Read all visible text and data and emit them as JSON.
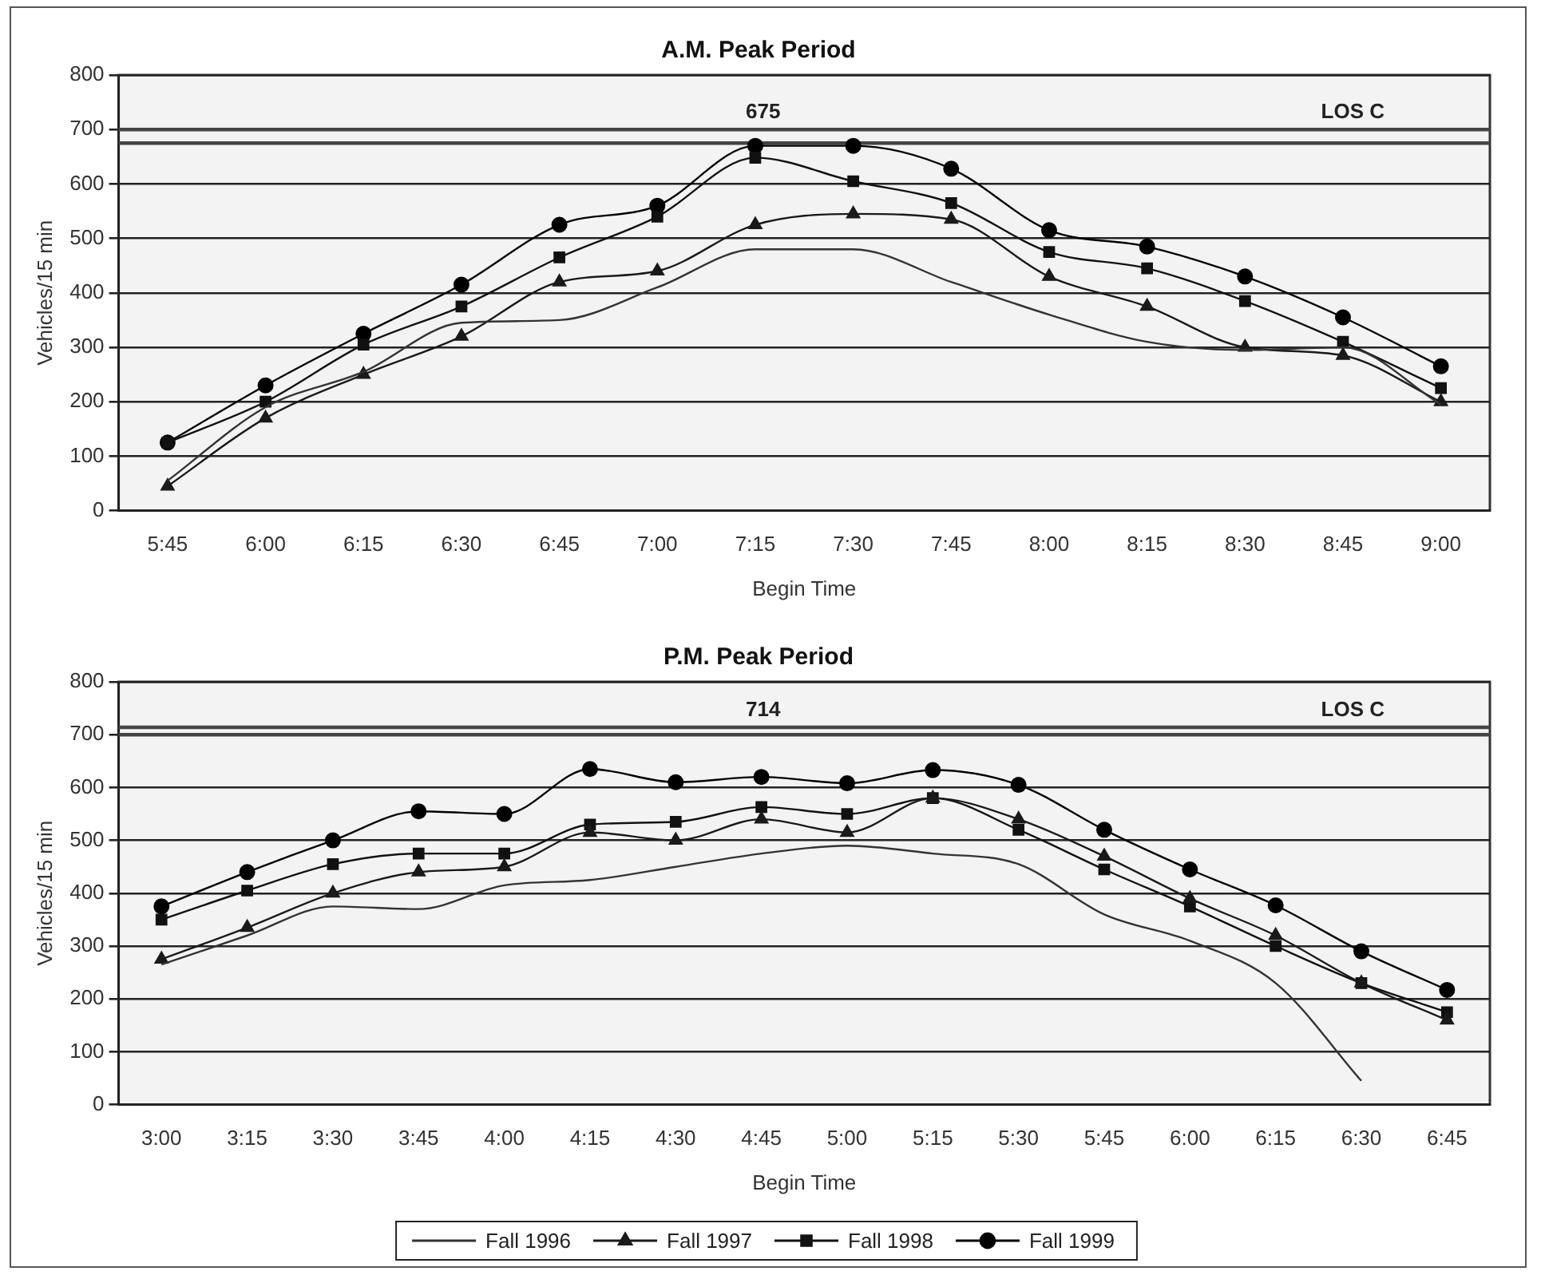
{
  "chart_data": [
    {
      "type": "line",
      "title": "A.M. Peak Period",
      "xlabel": "Begin Time",
      "ylabel": "Vehicles/15 min",
      "categories": [
        "5:45",
        "6:00",
        "6:15",
        "6:30",
        "6:45",
        "7:00",
        "7:15",
        "7:30",
        "7:45",
        "8:00",
        "8:15",
        "8:30",
        "8:45",
        "9:00"
      ],
      "series": [
        {
          "color": "#333333",
          "marker": "none",
          "values": [
            55,
            190,
            255,
            345,
            350,
            410,
            480,
            480,
            420,
            360,
            310,
            295,
            300,
            195
          ]
        },
        {
          "color": "#1a1a1a",
          "marker": "triangle",
          "values": [
            45,
            170,
            250,
            320,
            420,
            440,
            525,
            545,
            535,
            430,
            375,
            300,
            285,
            200
          ]
        },
        {
          "color": "#111111",
          "marker": "square",
          "values": [
            125,
            200,
            305,
            375,
            465,
            540,
            648,
            605,
            565,
            475,
            445,
            385,
            310,
            225
          ]
        },
        {
          "color": "#000000",
          "marker": "circle",
          "values": [
            125,
            230,
            325,
            415,
            525,
            560,
            670,
            670,
            628,
            515,
            485,
            430,
            355,
            265
          ]
        }
      ],
      "ylim": [
        0,
        800
      ],
      "yticks": [
        0,
        100,
        200,
        300,
        400,
        500,
        600,
        700,
        800
      ],
      "grid": "y",
      "legend": false,
      "ref_lines": [
        {
          "axis": "y",
          "value": 675,
          "label": "675",
          "color": "#444444"
        },
        {
          "axis": "y",
          "value": 700,
          "label": "LOS C",
          "color": "#444444"
        }
      ]
    },
    {
      "type": "line",
      "title": "P.M. Peak Period",
      "xlabel": "Begin Time",
      "ylabel": "Vehicles/15 min",
      "categories": [
        "3:00",
        "3:15",
        "3:30",
        "3:45",
        "4:00",
        "4:15",
        "4:30",
        "4:45",
        "5:00",
        "5:15",
        "5:30",
        "5:45",
        "6:00",
        "6:15",
        "6:30",
        "6:45"
      ],
      "series": [
        {
          "name": "Fall 1996",
          "color": "#333333",
          "marker": "none",
          "values": [
            265,
            320,
            375,
            370,
            415,
            425,
            450,
            475,
            490,
            475,
            455,
            360,
            310,
            230,
            45,
            null
          ]
        },
        {
          "name": "Fall 1997",
          "color": "#1a1a1a",
          "marker": "triangle",
          "values": [
            275,
            335,
            400,
            440,
            450,
            515,
            500,
            540,
            515,
            580,
            540,
            470,
            390,
            320,
            230,
            160
          ]
        },
        {
          "name": "Fall 1998",
          "color": "#111111",
          "marker": "square",
          "values": [
            350,
            405,
            455,
            475,
            475,
            530,
            535,
            563,
            550,
            580,
            520,
            445,
            375,
            300,
            230,
            175
          ]
        },
        {
          "name": "Fall 1999",
          "color": "#000000",
          "marker": "circle",
          "values": [
            375,
            440,
            500,
            555,
            550,
            635,
            610,
            620,
            608,
            633,
            605,
            520,
            445,
            377,
            290,
            217
          ]
        }
      ],
      "ylim": [
        0,
        800
      ],
      "yticks": [
        0,
        100,
        200,
        300,
        400,
        500,
        600,
        700,
        800
      ],
      "grid": "y",
      "legend": "bottom",
      "ref_lines": [
        {
          "axis": "y",
          "value": 714,
          "label": "714",
          "color": "#444444"
        },
        {
          "axis": "y",
          "value": 700,
          "label": "LOS C",
          "color": "#444444"
        }
      ]
    }
  ]
}
